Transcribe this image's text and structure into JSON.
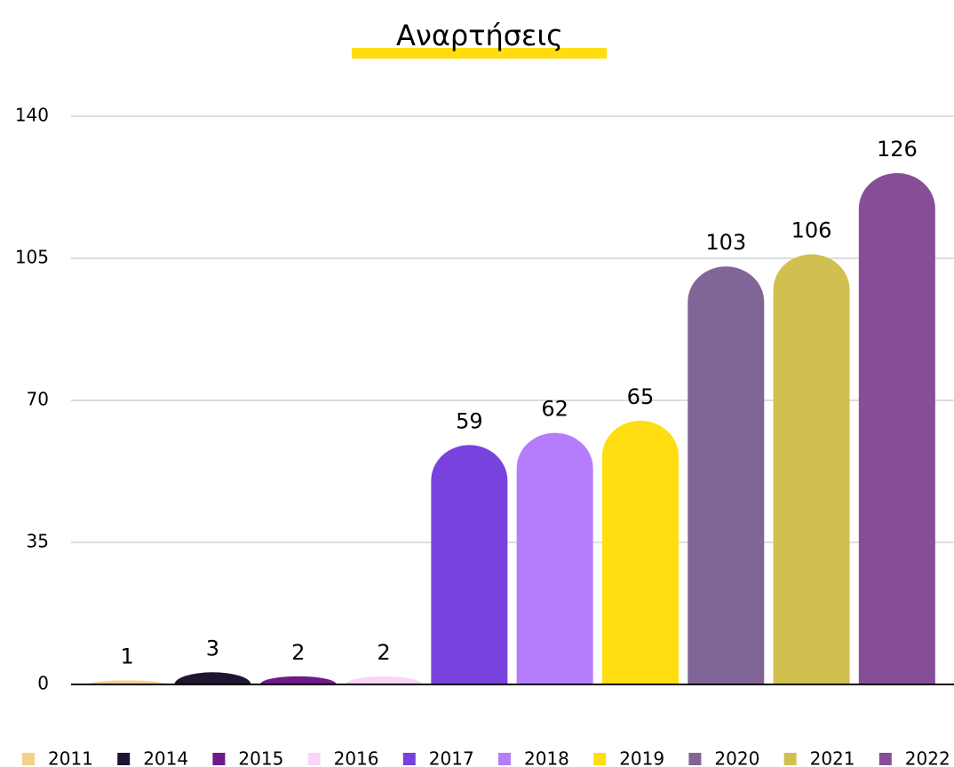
{
  "chart_data": {
    "type": "bar",
    "title": "Αναρτήσεις",
    "categories": [
      "2011",
      "2014",
      "2015",
      "2016",
      "2017",
      "2018",
      "2019",
      "2020",
      "2021",
      "2022"
    ],
    "values": [
      1,
      3,
      2,
      2,
      59,
      62,
      65,
      103,
      106,
      126
    ],
    "colors": [
      "#f5d08a",
      "#1f1530",
      "#6e1a8a",
      "#fbd5f5",
      "#7842de",
      "#b57dfc",
      "#ffdd11",
      "#826597",
      "#d1c04f",
      "#874e98"
    ],
    "ylim": [
      0,
      140
    ],
    "yticks": [
      0,
      35,
      70,
      105,
      140
    ],
    "grid": true,
    "legend": "bottom"
  }
}
